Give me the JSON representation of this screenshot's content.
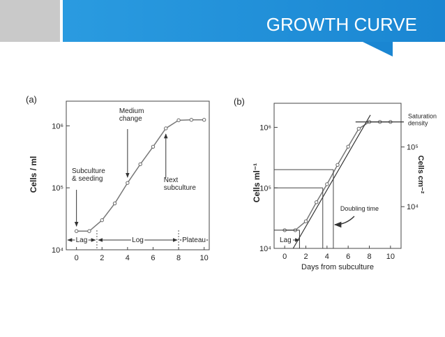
{
  "header": {
    "title": "GROWTH CURVE"
  },
  "chart_data": [
    {
      "type": "line",
      "panel_label": "(a)",
      "y_label": "Cells / ml",
      "log_y": true,
      "x": [
        0,
        1,
        2,
        3,
        4,
        5,
        6,
        7,
        8,
        9,
        10
      ],
      "series": [
        {
          "color": "#777777",
          "values": [
            20000,
            20000,
            30000,
            56000,
            120000,
            240000,
            460000,
            910000,
            1230000,
            1250000,
            1250000
          ]
        }
      ],
      "xlim": [
        -0.8,
        10.4
      ],
      "ylim": [
        10000,
        2500000
      ],
      "xticks": [
        0,
        2,
        4,
        6,
        8,
        10
      ],
      "yticks": [
        {
          "value": 10000,
          "label": "10⁴"
        },
        {
          "value": 100000,
          "label": "10⁵"
        },
        {
          "value": 1000000,
          "label": "10⁶"
        }
      ],
      "annotations": [
        {
          "lines": [
            "Medium",
            "change"
          ],
          "x": 4
        },
        {
          "lines": [
            "Subculture",
            "& seeding"
          ],
          "x": 0
        },
        {
          "lines": [
            "Next",
            "subculture"
          ],
          "x": 7
        }
      ],
      "phases": [
        {
          "name": "Lag",
          "from": -0.8,
          "to": 1.6
        },
        {
          "name": "Log",
          "from": 1.6,
          "to": 8
        },
        {
          "name": "Plateau",
          "from": 8,
          "to": 10.4
        }
      ]
    },
    {
      "type": "line",
      "panel_label": "(b)",
      "x_label": "Days from subculture",
      "y_label": "Cells ml⁻¹",
      "y2_label": "Cells cm⁻²",
      "log_y": true,
      "x": [
        0,
        1,
        2,
        3,
        4,
        5,
        6,
        7,
        8,
        9,
        10
      ],
      "series": [
        {
          "color": "#777777",
          "values": [
            20000,
            20000,
            28000,
            58000,
            115000,
            240000,
            480000,
            950000,
            1230000,
            1230000,
            1230000
          ]
        }
      ],
      "xlim": [
        -1,
        11
      ],
      "ylim": [
        10000,
        2500000
      ],
      "y2lim": [
        2000,
        540000
      ],
      "xticks": [
        0,
        2,
        4,
        6,
        8,
        10
      ],
      "yticks": [
        {
          "value": 10000,
          "label": "10⁴"
        },
        {
          "value": 100000,
          "label": "10⁵"
        },
        {
          "value": 1000000,
          "label": "10⁶"
        }
      ],
      "y2ticks": [
        {
          "value": 10000,
          "label": "10⁴"
        },
        {
          "value": 100000,
          "label": "10⁵"
        }
      ],
      "fit_line": {
        "x": [
          0.8,
          8.1
        ],
        "y": [
          10000,
          1600000
        ]
      },
      "lag": {
        "label": "Lag",
        "value": 20000,
        "x_end": 1.4
      },
      "saturation": {
        "lines": [
          "Saturation",
          "density"
        ],
        "value": 1230000,
        "x_start": 6.7
      },
      "doubling": {
        "label": "Doubling time",
        "guides": [
          {
            "x": 3.6,
            "y": 100000
          },
          {
            "x": 4.6,
            "y": 200000
          }
        ]
      }
    }
  ]
}
